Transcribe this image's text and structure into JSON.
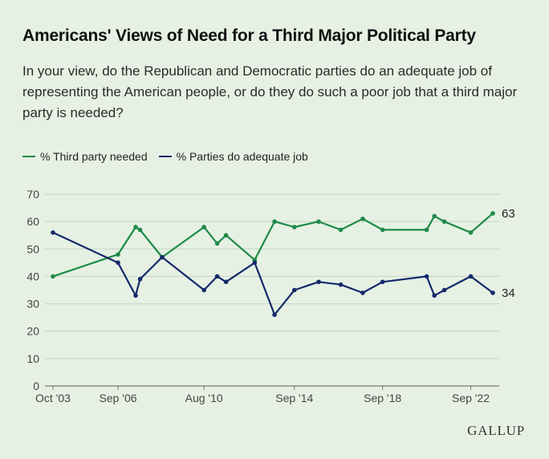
{
  "header": {
    "title": "Americans' Views of Need for a Third Major Political Party",
    "question": "In your view, do the Republican and Democratic parties do an adequate job of representing the American people, or do they do such a poor job that a third major party is needed?"
  },
  "branding": {
    "logo_text": "GALLUP"
  },
  "colors": {
    "third_party": "#1e8a47",
    "adequate": "#15296b",
    "gridline": "#c6d3c4",
    "axis": "#777777"
  },
  "chart_data": {
    "type": "line",
    "title": "Americans' Views of Need for a Third Major Political Party",
    "xlabel": "",
    "ylabel": "",
    "ylim": [
      0,
      70
    ],
    "yticks": [
      0,
      10,
      20,
      30,
      40,
      50,
      60,
      70
    ],
    "xlim": [
      2003.75,
      2023.7
    ],
    "xticks": [
      {
        "label": "Oct '03",
        "x": 2003.75
      },
      {
        "label": "Sep '06",
        "x": 2006.7
      },
      {
        "label": "Aug '10",
        "x": 2010.6
      },
      {
        "label": "Sep '14",
        "x": 2014.7
      },
      {
        "label": "Sep '18",
        "x": 2018.7
      },
      {
        "label": "Sep '22",
        "x": 2022.7
      }
    ],
    "grid": true,
    "legend_position": "top-left",
    "series": [
      {
        "name": "% Third party needed",
        "color": "#1e8a47",
        "end_label": "63",
        "points": [
          [
            2003.75,
            40
          ],
          [
            2006.7,
            48
          ],
          [
            2007.5,
            58
          ],
          [
            2007.7,
            57
          ],
          [
            2008.7,
            47
          ],
          [
            2010.6,
            58
          ],
          [
            2011.2,
            52
          ],
          [
            2011.6,
            55
          ],
          [
            2012.9,
            46
          ],
          [
            2013.8,
            60
          ],
          [
            2014.7,
            58
          ],
          [
            2015.8,
            60
          ],
          [
            2016.8,
            57
          ],
          [
            2017.8,
            61
          ],
          [
            2018.7,
            57
          ],
          [
            2020.7,
            57
          ],
          [
            2021.05,
            62
          ],
          [
            2021.5,
            60
          ],
          [
            2022.7,
            56
          ],
          [
            2023.7,
            63
          ]
        ]
      },
      {
        "name": "% Parties do adequate job",
        "color": "#15296b",
        "end_label": "34",
        "points": [
          [
            2003.75,
            56
          ],
          [
            2006.7,
            45
          ],
          [
            2007.5,
            33
          ],
          [
            2007.7,
            39
          ],
          [
            2008.7,
            47
          ],
          [
            2010.6,
            35
          ],
          [
            2011.2,
            40
          ],
          [
            2011.6,
            38
          ],
          [
            2012.9,
            45
          ],
          [
            2013.8,
            26
          ],
          [
            2014.7,
            35
          ],
          [
            2015.8,
            38
          ],
          [
            2016.8,
            37
          ],
          [
            2017.8,
            34
          ],
          [
            2018.7,
            38
          ],
          [
            2020.7,
            40
          ],
          [
            2021.05,
            33
          ],
          [
            2021.5,
            35
          ],
          [
            2022.7,
            40
          ],
          [
            2023.7,
            34
          ]
        ]
      }
    ]
  }
}
